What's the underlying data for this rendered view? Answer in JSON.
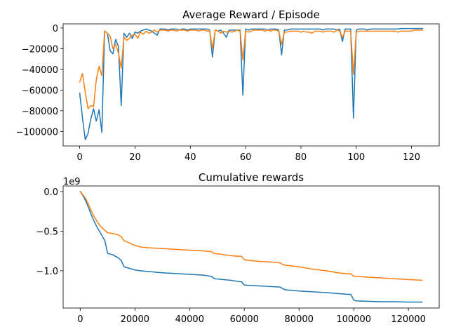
{
  "chart_data": [
    {
      "type": "line",
      "title": "Average Reward / Episode",
      "xlabel": "",
      "ylabel": "",
      "xlim": [
        -6,
        130
      ],
      "ylim": [
        -114000,
        4000
      ],
      "xticks": [
        0,
        20,
        40,
        60,
        80,
        100,
        120
      ],
      "xtick_labels": [
        "0",
        "20",
        "40",
        "60",
        "80",
        "100",
        "120"
      ],
      "yticks": [
        0,
        -20000,
        -40000,
        -60000,
        -80000,
        -100000
      ],
      "ytick_labels": [
        "0",
        "−20000",
        "−40000",
        "−60000",
        "−80000",
        "−100000"
      ],
      "grid": false,
      "series": [
        {
          "color": "#1f77b4",
          "x": [
            0,
            1,
            2,
            3,
            4,
            5,
            6,
            7,
            8,
            9,
            10,
            11,
            12,
            13,
            14,
            15,
            16,
            17,
            18,
            19,
            20,
            21,
            22,
            23,
            24,
            25,
            26,
            27,
            28,
            29,
            30,
            31,
            32,
            33,
            34,
            35,
            36,
            37,
            38,
            39,
            40,
            41,
            42,
            43,
            44,
            45,
            46,
            47,
            48,
            49,
            50,
            51,
            52,
            53,
            54,
            55,
            56,
            57,
            58,
            59,
            60,
            61,
            62,
            63,
            64,
            65,
            66,
            67,
            68,
            69,
            70,
            71,
            72,
            73,
            74,
            75,
            76,
            77,
            78,
            79,
            80,
            81,
            82,
            83,
            84,
            85,
            86,
            87,
            88,
            89,
            90,
            91,
            92,
            93,
            94,
            95,
            96,
            97,
            98,
            99,
            100,
            101,
            102,
            103,
            104,
            105,
            106,
            107,
            108,
            109,
            110,
            111,
            112,
            113,
            114,
            115,
            116,
            117,
            118,
            119,
            120,
            121,
            122,
            123,
            124
          ],
          "y": [
            -63000,
            -87000,
            -108000,
            -102000,
            -88000,
            -78000,
            -90000,
            -79000,
            -101000,
            -3000,
            -5000,
            -22000,
            -25000,
            -11000,
            -18000,
            -75000,
            -5000,
            -9000,
            -5000,
            -10000,
            -4000,
            -5000,
            -3000,
            -2000,
            -1000,
            -2000,
            -3000,
            -5000,
            -7000,
            -1000,
            -1000,
            -1000,
            -2000,
            -1000,
            -1000,
            -1000,
            -2000,
            -1000,
            -1000,
            -2000,
            -1000,
            -1000,
            -1000,
            -1000,
            -1000,
            -1000,
            -1000,
            -2000,
            -28000,
            -2000,
            -3000,
            -2000,
            -5000,
            -9000,
            -2000,
            -2000,
            -2000,
            -2000,
            -2000,
            -65000,
            -1000,
            -2000,
            -1000,
            -1000,
            -1000,
            -1000,
            -1000,
            -1000,
            -2000,
            -1000,
            -1000,
            -1000,
            -2000,
            -26000,
            -2000,
            -2000,
            -1000,
            -1000,
            -1000,
            -1000,
            -1000,
            -1000,
            -1000,
            -1000,
            -1000,
            -1000,
            -1000,
            -1000,
            -2000,
            -1000,
            -1000,
            -1000,
            -1000,
            -2000,
            -1000,
            -13000,
            -1000,
            -1000,
            -1000,
            -87000,
            -2000,
            -1000,
            -1000,
            -1000,
            -2000,
            -1000,
            -1000,
            -1000,
            -1000,
            -1000,
            -1000,
            -1000,
            -1000,
            -1000,
            -1000,
            -1000,
            -500,
            -500,
            -500,
            -500,
            -500,
            -500,
            -500,
            -500,
            -500
          ]
        },
        {
          "color": "#ff7f0e",
          "x": [
            0,
            1,
            2,
            3,
            4,
            5,
            6,
            7,
            8,
            9,
            10,
            11,
            12,
            13,
            14,
            15,
            16,
            17,
            18,
            19,
            20,
            21,
            22,
            23,
            24,
            25,
            26,
            27,
            28,
            29,
            30,
            31,
            32,
            33,
            34,
            35,
            36,
            37,
            38,
            39,
            40,
            41,
            42,
            43,
            44,
            45,
            46,
            47,
            48,
            49,
            50,
            51,
            52,
            53,
            54,
            55,
            56,
            57,
            58,
            59,
            60,
            61,
            62,
            63,
            64,
            65,
            66,
            67,
            68,
            69,
            70,
            71,
            72,
            73,
            74,
            75,
            76,
            77,
            78,
            79,
            80,
            81,
            82,
            83,
            84,
            85,
            86,
            87,
            88,
            89,
            90,
            91,
            92,
            93,
            94,
            95,
            96,
            97,
            98,
            99,
            100,
            101,
            102,
            103,
            104,
            105,
            106,
            107,
            108,
            109,
            110,
            111,
            112,
            113,
            114,
            115,
            116,
            117,
            118,
            119,
            120,
            121,
            122,
            123,
            124
          ],
          "y": [
            -52000,
            -44000,
            -62000,
            -78000,
            -75000,
            -76000,
            -50000,
            -37000,
            -46000,
            -3000,
            -5000,
            -8000,
            -20000,
            -16000,
            -24000,
            -39000,
            -9000,
            -12000,
            -10000,
            -7000,
            -6000,
            -10000,
            -4000,
            -6000,
            -3000,
            -5000,
            -4000,
            -2000,
            -4000,
            -2000,
            -2000,
            -2000,
            -3000,
            -2000,
            -2000,
            -3000,
            -2000,
            -2000,
            -2000,
            -3000,
            -2000,
            -2000,
            -2000,
            -3000,
            -2000,
            -2000,
            -3000,
            -3000,
            -20000,
            -2000,
            -3000,
            -5000,
            -3000,
            -4000,
            -3000,
            -4000,
            -3000,
            -2000,
            -3000,
            -31000,
            -3000,
            -4000,
            -3000,
            -2000,
            -2000,
            -2000,
            -2000,
            -3000,
            -2000,
            -3000,
            -2000,
            -2000,
            -3000,
            -16000,
            -4000,
            -4000,
            -3000,
            -3000,
            -3000,
            -3000,
            -4000,
            -3000,
            -4000,
            -4000,
            -5000,
            -3000,
            -3000,
            -3000,
            -4000,
            -3000,
            -3000,
            -3000,
            -4000,
            -2000,
            -3000,
            -9000,
            -3000,
            -3000,
            -3000,
            -45000,
            -4000,
            -3000,
            -3000,
            -3000,
            -3000,
            -3000,
            -3000,
            -3000,
            -3000,
            -3000,
            -3000,
            -3000,
            -3000,
            -3000,
            -3000,
            -4000,
            -3000,
            -3000,
            -3000,
            -3000,
            -3000,
            -2000,
            -2000,
            -2000,
            -2000
          ]
        }
      ]
    },
    {
      "type": "line",
      "title": "Cumulative rewards",
      "xlabel": "",
      "ylabel": "",
      "offset_text": "1e9",
      "xlim": [
        -6250,
        131250
      ],
      "ylim": [
        -1.47,
        0.07
      ],
      "xticks": [
        0,
        20000,
        40000,
        60000,
        80000,
        100000,
        120000
      ],
      "xtick_labels": [
        "0",
        "20000",
        "40000",
        "60000",
        "80000",
        "100000",
        "120000"
      ],
      "yticks": [
        0.0,
        -0.5,
        -1.0
      ],
      "ytick_labels": [
        "0.0",
        "−0.5",
        "−1.0"
      ],
      "grid": false,
      "series": [
        {
          "color": "#1f77b4",
          "x": [
            0,
            1000,
            2000,
            3000,
            4000,
            5000,
            6000,
            7000,
            8000,
            9000,
            10000,
            11000,
            12000,
            13000,
            14000,
            15000,
            16000,
            17000,
            18000,
            20000,
            22000,
            25000,
            30000,
            35000,
            40000,
            45000,
            48000,
            49000,
            55000,
            59000,
            60000,
            62000,
            65000,
            70000,
            73000,
            74000,
            75000,
            80000,
            85000,
            90000,
            95000,
            99000,
            100000,
            101000,
            105000,
            110000,
            115000,
            120000,
            125000
          ],
          "y": [
            0,
            -0.05,
            -0.12,
            -0.2,
            -0.29,
            -0.37,
            -0.44,
            -0.5,
            -0.56,
            -0.62,
            -0.78,
            -0.79,
            -0.8,
            -0.82,
            -0.84,
            -0.87,
            -0.95,
            -0.96,
            -0.97,
            -0.99,
            -1.0,
            -1.01,
            -1.025,
            -1.035,
            -1.045,
            -1.055,
            -1.07,
            -1.1,
            -1.12,
            -1.14,
            -1.18,
            -1.185,
            -1.19,
            -1.2,
            -1.205,
            -1.225,
            -1.24,
            -1.255,
            -1.265,
            -1.275,
            -1.29,
            -1.3,
            -1.37,
            -1.38,
            -1.385,
            -1.39,
            -1.39,
            -1.395,
            -1.395
          ]
        },
        {
          "color": "#ff7f0e",
          "x": [
            0,
            1000,
            2000,
            3000,
            4000,
            5000,
            6000,
            7000,
            8000,
            9000,
            10000,
            12000,
            14000,
            15000,
            16000,
            18000,
            20000,
            22000,
            25000,
            30000,
            35000,
            40000,
            45000,
            48000,
            49000,
            55000,
            59000,
            60000,
            62000,
            65000,
            70000,
            73000,
            74000,
            75000,
            80000,
            85000,
            90000,
            95000,
            99000,
            100000,
            101000,
            105000,
            110000,
            115000,
            120000,
            125000
          ],
          "y": [
            0,
            -0.04,
            -0.09,
            -0.16,
            -0.24,
            -0.31,
            -0.37,
            -0.42,
            -0.46,
            -0.49,
            -0.52,
            -0.53,
            -0.55,
            -0.57,
            -0.62,
            -0.65,
            -0.68,
            -0.7,
            -0.71,
            -0.72,
            -0.73,
            -0.74,
            -0.75,
            -0.76,
            -0.78,
            -0.81,
            -0.82,
            -0.86,
            -0.87,
            -0.88,
            -0.89,
            -0.9,
            -0.92,
            -0.93,
            -0.95,
            -0.98,
            -1.0,
            -1.03,
            -1.04,
            -1.07,
            -1.07,
            -1.08,
            -1.09,
            -1.1,
            -1.11,
            -1.12
          ]
        }
      ]
    }
  ]
}
